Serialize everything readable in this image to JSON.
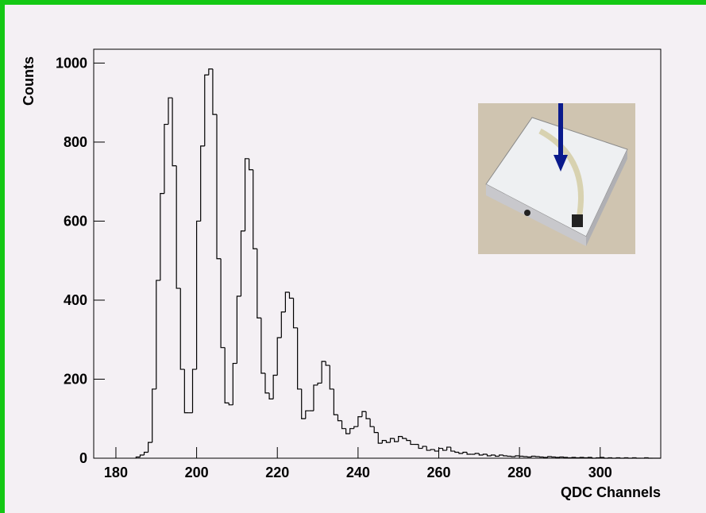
{
  "chart_data": {
    "type": "histogram",
    "x_label": "QDC Channels",
    "y_label": "Counts",
    "bins": [
      185,
      186,
      187,
      188,
      189,
      190,
      191,
      192,
      193,
      194,
      195,
      196,
      197,
      198,
      199,
      200,
      201,
      202,
      203,
      204,
      205,
      206,
      207,
      208,
      209,
      210,
      211,
      212,
      213,
      214,
      215,
      216,
      217,
      218,
      219,
      220,
      221,
      222,
      223,
      224,
      225,
      226,
      227,
      228,
      229,
      230,
      231,
      232,
      233,
      234,
      235,
      236,
      237,
      238,
      239,
      240,
      241,
      242,
      243,
      244,
      245,
      246,
      247,
      248,
      249,
      250,
      251,
      252,
      253,
      254,
      255,
      256,
      257,
      258,
      259,
      260,
      261,
      262,
      263,
      264,
      265,
      266,
      267,
      268,
      269,
      270,
      271,
      272,
      273,
      274,
      275,
      276,
      277,
      278,
      279,
      280,
      281,
      282,
      283,
      284,
      285,
      286,
      287,
      288,
      289,
      290,
      291,
      292,
      293,
      294,
      295,
      296,
      297,
      298,
      299,
      300,
      301,
      302,
      303,
      304,
      305,
      306,
      307,
      308,
      309,
      310,
      311,
      312,
      313,
      314,
      315
    ],
    "values": [
      3,
      8,
      15,
      40,
      175,
      450,
      670,
      845,
      912,
      740,
      430,
      225,
      115,
      115,
      225,
      600,
      790,
      970,
      985,
      870,
      505,
      280,
      140,
      135,
      240,
      410,
      575,
      758,
      730,
      530,
      355,
      215,
      165,
      150,
      210,
      305,
      370,
      420,
      405,
      330,
      175,
      100,
      120,
      120,
      185,
      190,
      245,
      235,
      175,
      110,
      95,
      75,
      62,
      75,
      80,
      105,
      118,
      100,
      80,
      65,
      38,
      45,
      40,
      50,
      42,
      55,
      50,
      45,
      35,
      35,
      25,
      30,
      20,
      22,
      18,
      25,
      20,
      28,
      18,
      15,
      12,
      15,
      10,
      10,
      12,
      8,
      10,
      6,
      8,
      5,
      8,
      6,
      5,
      4,
      6,
      5,
      4,
      3,
      5,
      4,
      3,
      2,
      4,
      3,
      2,
      3,
      2,
      1,
      2,
      1,
      2,
      1,
      2,
      0,
      1,
      2,
      0,
      1,
      0,
      1,
      0,
      1,
      0,
      1,
      0,
      0,
      1,
      0,
      0,
      0
    ],
    "color": "#000000",
    "xlim": [
      174.5,
      315
    ],
    "ylim": [
      0,
      1035
    ],
    "xticks": [
      180,
      200,
      220,
      240,
      260,
      280,
      300
    ],
    "yticks": [
      0,
      200,
      400,
      600,
      800,
      1000
    ]
  }
}
